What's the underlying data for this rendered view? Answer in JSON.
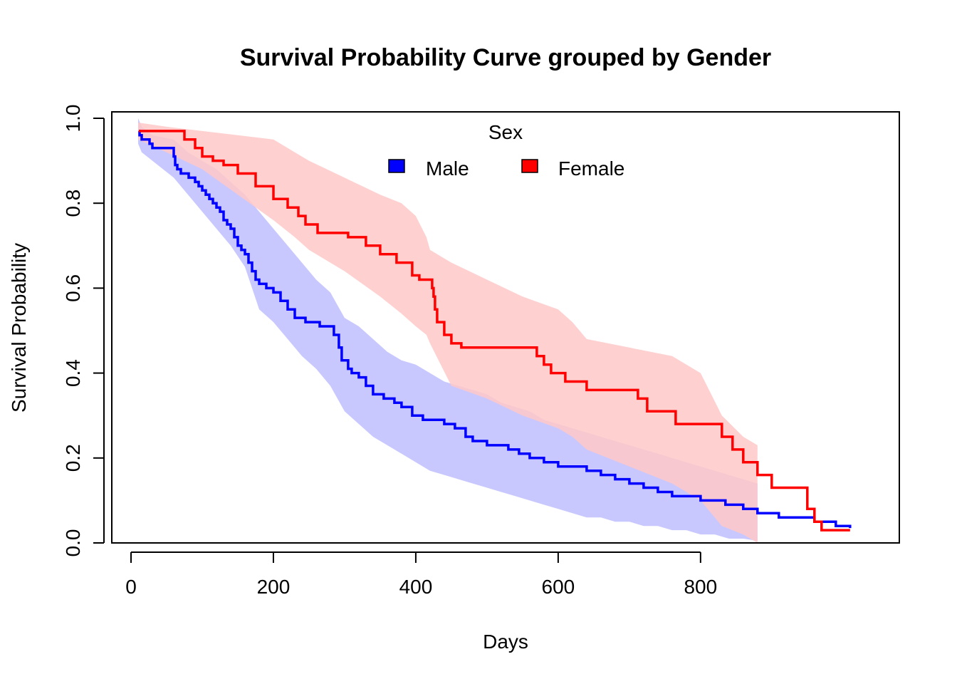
{
  "chart_data": {
    "type": "line",
    "title": "Survival Probability Curve grouped by Gender",
    "xlabel": "Days",
    "ylabel": "Survival Probability",
    "xlim": [
      0,
      900
    ],
    "ylim": [
      0,
      1
    ],
    "x_ticks": [
      "0",
      "200",
      "400",
      "600",
      "800"
    ],
    "y_ticks": [
      "0.0",
      "0.2",
      "0.4",
      "0.6",
      "0.8",
      "1.0"
    ],
    "grid": false,
    "legend": {
      "title": "Sex",
      "placement": "top-center",
      "entries": [
        {
          "label": "Male",
          "color": "#0000FF"
        },
        {
          "label": "Female",
          "color": "#FF0000"
        }
      ]
    },
    "series": [
      {
        "name": "Male",
        "color": "#0000FF",
        "band_color": "#C8C8FF",
        "step": [
          [
            11,
            0.97
          ],
          [
            12,
            0.96
          ],
          [
            15,
            0.95
          ],
          [
            26,
            0.94
          ],
          [
            30,
            0.93
          ],
          [
            60,
            0.91
          ],
          [
            62,
            0.89
          ],
          [
            65,
            0.88
          ],
          [
            70,
            0.87
          ],
          [
            81,
            0.86
          ],
          [
            90,
            0.85
          ],
          [
            95,
            0.84
          ],
          [
            100,
            0.83
          ],
          [
            105,
            0.82
          ],
          [
            110,
            0.81
          ],
          [
            115,
            0.8
          ],
          [
            120,
            0.79
          ],
          [
            125,
            0.78
          ],
          [
            130,
            0.76
          ],
          [
            135,
            0.75
          ],
          [
            140,
            0.74
          ],
          [
            145,
            0.72
          ],
          [
            150,
            0.7
          ],
          [
            155,
            0.69
          ],
          [
            160,
            0.68
          ],
          [
            165,
            0.66
          ],
          [
            170,
            0.64
          ],
          [
            175,
            0.62
          ],
          [
            180,
            0.61
          ],
          [
            190,
            0.6
          ],
          [
            200,
            0.59
          ],
          [
            210,
            0.57
          ],
          [
            220,
            0.55
          ],
          [
            230,
            0.53
          ],
          [
            245,
            0.52
          ],
          [
            265,
            0.51
          ],
          [
            285,
            0.49
          ],
          [
            292,
            0.46
          ],
          [
            296,
            0.43
          ],
          [
            305,
            0.41
          ],
          [
            310,
            0.4
          ],
          [
            320,
            0.39
          ],
          [
            330,
            0.37
          ],
          [
            340,
            0.35
          ],
          [
            355,
            0.34
          ],
          [
            370,
            0.33
          ],
          [
            380,
            0.32
          ],
          [
            395,
            0.3
          ],
          [
            410,
            0.29
          ],
          [
            440,
            0.28
          ],
          [
            455,
            0.27
          ],
          [
            470,
            0.25
          ],
          [
            480,
            0.24
          ],
          [
            500,
            0.23
          ],
          [
            530,
            0.22
          ],
          [
            545,
            0.21
          ],
          [
            560,
            0.2
          ],
          [
            580,
            0.19
          ],
          [
            600,
            0.18
          ],
          [
            640,
            0.17
          ],
          [
            660,
            0.16
          ],
          [
            680,
            0.15
          ],
          [
            700,
            0.14
          ],
          [
            720,
            0.13
          ],
          [
            740,
            0.12
          ],
          [
            760,
            0.11
          ],
          [
            800,
            0.1
          ],
          [
            835,
            0.09
          ],
          [
            860,
            0.08
          ],
          [
            880,
            0.07
          ],
          [
            910,
            0.06
          ],
          [
            960,
            0.05
          ],
          [
            990,
            0.04
          ],
          [
            1010,
            0.035
          ]
        ],
        "x": [
          10,
          15,
          30,
          60,
          80,
          100,
          120,
          140,
          160,
          180,
          200,
          220,
          240,
          260,
          280,
          290,
          300,
          320,
          340,
          360,
          380,
          400,
          420,
          440,
          460,
          480,
          500,
          520,
          540,
          560,
          580,
          600,
          620,
          640,
          660,
          680,
          700,
          720,
          740,
          760,
          780,
          800,
          820,
          840,
          860,
          880
        ],
        "upper": [
          1.0,
          0.98,
          0.96,
          0.95,
          0.92,
          0.9,
          0.88,
          0.85,
          0.82,
          0.78,
          0.74,
          0.7,
          0.66,
          0.62,
          0.59,
          0.56,
          0.53,
          0.51,
          0.48,
          0.45,
          0.43,
          0.42,
          0.4,
          0.38,
          0.37,
          0.36,
          0.35,
          0.33,
          0.32,
          0.31,
          0.29,
          0.28,
          0.27,
          0.26,
          0.25,
          0.24,
          0.23,
          0.22,
          0.21,
          0.2,
          0.19,
          0.18,
          0.17,
          0.16,
          0.15,
          0.14
        ],
        "lower": [
          0.94,
          0.92,
          0.9,
          0.86,
          0.82,
          0.78,
          0.74,
          0.7,
          0.65,
          0.55,
          0.52,
          0.48,
          0.44,
          0.41,
          0.37,
          0.34,
          0.31,
          0.28,
          0.25,
          0.23,
          0.21,
          0.19,
          0.17,
          0.16,
          0.15,
          0.14,
          0.13,
          0.12,
          0.11,
          0.1,
          0.09,
          0.08,
          0.07,
          0.06,
          0.06,
          0.05,
          0.05,
          0.04,
          0.04,
          0.03,
          0.03,
          0.02,
          0.02,
          0.01,
          0.01,
          0.005
        ]
      },
      {
        "name": "Female",
        "color": "#FF0000",
        "band_color": "#FFC8C8",
        "step": [
          [
            11,
            0.97
          ],
          [
            75,
            0.95
          ],
          [
            90,
            0.93
          ],
          [
            100,
            0.91
          ],
          [
            115,
            0.9
          ],
          [
            130,
            0.89
          ],
          [
            150,
            0.87
          ],
          [
            175,
            0.84
          ],
          [
            200,
            0.81
          ],
          [
            220,
            0.79
          ],
          [
            235,
            0.77
          ],
          [
            245,
            0.75
          ],
          [
            262,
            0.73
          ],
          [
            305,
            0.72
          ],
          [
            330,
            0.7
          ],
          [
            350,
            0.68
          ],
          [
            373,
            0.66
          ],
          [
            395,
            0.63
          ],
          [
            405,
            0.62
          ],
          [
            423,
            0.6
          ],
          [
            425,
            0.58
          ],
          [
            427,
            0.55
          ],
          [
            430,
            0.52
          ],
          [
            440,
            0.49
          ],
          [
            450,
            0.47
          ],
          [
            464,
            0.46
          ],
          [
            570,
            0.44
          ],
          [
            580,
            0.42
          ],
          [
            590,
            0.4
          ],
          [
            610,
            0.38
          ],
          [
            640,
            0.36
          ],
          [
            712,
            0.34
          ],
          [
            725,
            0.31
          ],
          [
            765,
            0.28
          ],
          [
            830,
            0.25
          ],
          [
            845,
            0.22
          ],
          [
            860,
            0.19
          ],
          [
            880,
            0.16
          ],
          [
            900,
            0.13
          ],
          [
            950,
            0.08
          ],
          [
            960,
            0.05
          ],
          [
            970,
            0.03
          ],
          [
            1010,
            0.03
          ]
        ],
        "x": [
          10,
          50,
          100,
          150,
          200,
          230,
          250,
          300,
          350,
          380,
          400,
          415,
          420,
          450,
          500,
          550,
          600,
          620,
          640,
          700,
          760,
          800,
          830,
          860,
          880
        ],
        "upper": [
          0.99,
          0.98,
          0.97,
          0.96,
          0.95,
          0.92,
          0.9,
          0.86,
          0.82,
          0.8,
          0.77,
          0.72,
          0.69,
          0.66,
          0.62,
          0.58,
          0.55,
          0.52,
          0.48,
          0.46,
          0.44,
          0.4,
          0.3,
          0.25,
          0.23
        ],
        "lower": [
          0.95,
          0.92,
          0.88,
          0.82,
          0.76,
          0.72,
          0.69,
          0.64,
          0.58,
          0.54,
          0.51,
          0.49,
          0.47,
          0.37,
          0.34,
          0.3,
          0.27,
          0.25,
          0.22,
          0.18,
          0.14,
          0.1,
          0.04,
          0.02,
          0.0
        ]
      }
    ]
  }
}
